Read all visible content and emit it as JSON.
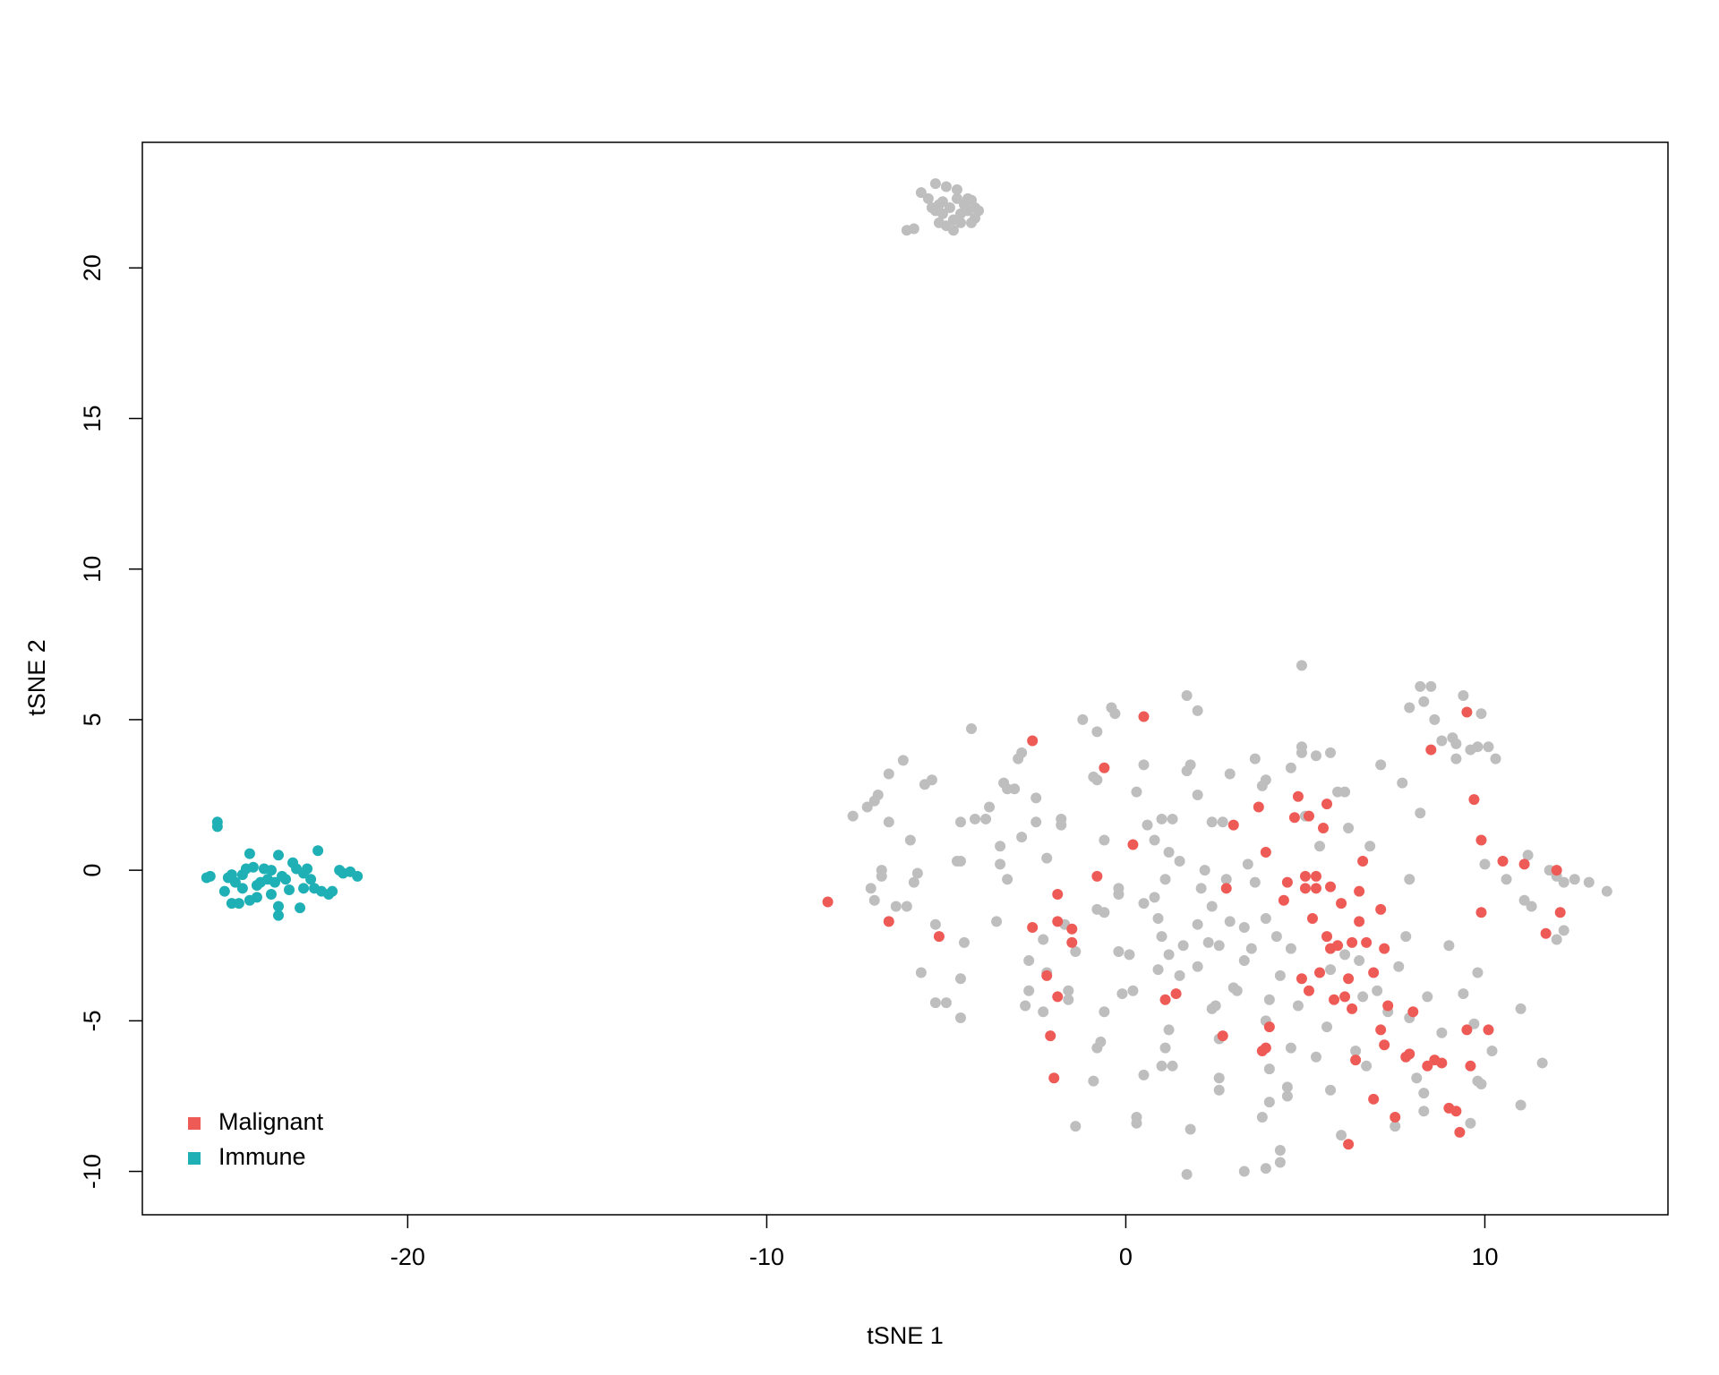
{
  "chart_data": {
    "type": "scatter",
    "xlabel": "tSNE 1",
    "ylabel": "tSNE 2",
    "xlim": [
      -27.39,
      15.1
    ],
    "ylim": [
      -11.44,
      24.17
    ],
    "xticks": [
      -20,
      -10,
      0,
      10
    ],
    "yticks": [
      -10,
      -5,
      0,
      5,
      10,
      15,
      20
    ],
    "legend": "bottomleft",
    "series": [
      {
        "color": "#bebebe",
        "x": [
          -6.1,
          -5.9,
          -5.7,
          -5.5,
          -5.3,
          -5.3,
          -5.2,
          -5.2,
          -5.1,
          -5.0,
          -5.0,
          -4.9,
          -4.8,
          -4.8,
          -4.7,
          -4.7,
          -4.6,
          -4.5,
          -4.4,
          -4.3,
          -4.3,
          -4.2,
          -4.2,
          -4.4,
          -5.4,
          -5.1,
          -4.6,
          -4.1,
          -7.6,
          -7.2,
          -7.0,
          -6.9,
          -6.6,
          -6.2,
          -5.6,
          -5.4,
          -6.6,
          -7.0,
          -7.1,
          -6.8,
          -6.8,
          -6.4,
          -6.1,
          -6.0,
          -5.9,
          -5.7,
          -5.8,
          -5.3,
          -5.3,
          -5.0,
          -4.7,
          -4.6,
          -4.6,
          -4.5,
          -4.6,
          -4.6,
          -4.3,
          -4.2,
          -3.9,
          -3.8,
          -3.6,
          -3.5,
          -3.5,
          -3.3,
          -3.4,
          -3.1,
          -3.0,
          -2.9,
          -3.3,
          -2.8,
          -2.7,
          -2.7,
          -2.9,
          -2.5,
          -2.5,
          -2.3,
          -2.2,
          -2.2,
          -2.3,
          -1.8,
          -1.8,
          -1.7,
          -1.6,
          -1.6,
          -1.4,
          -1.2,
          -0.9,
          -0.8,
          -0.6,
          -0.6,
          -0.8,
          -0.7,
          -0.8,
          -0.9,
          -1.4,
          -0.8,
          -0.4,
          -0.3,
          -0.2,
          -0.2,
          -0.1,
          0.1,
          0.2,
          -0.6,
          0.3,
          0.5,
          0.6,
          0.8,
          1.0,
          1.3,
          1.2,
          1.5,
          1.1,
          0.5,
          0.8,
          1.0,
          1.2,
          0.9,
          1.5,
          1.2,
          1.1,
          1.3,
          1.0,
          0.5,
          0.3,
          0.3,
          1.8,
          1.7,
          1.8,
          1.7,
          2.0,
          2.0,
          2.4,
          2.7,
          2.9,
          2.2,
          2.8,
          2.4,
          2.0,
          2.3,
          2.6,
          2.0,
          2.5,
          2.4,
          2.6,
          2.6,
          2.6,
          1.7,
          3.1,
          3.3,
          3.3,
          3.4,
          3.6,
          3.6,
          3.8,
          3.9,
          3.9,
          4.2,
          4.0,
          4.0,
          3.8,
          3.9,
          3.3,
          4.3,
          4.3,
          4.5,
          4.5,
          4.6,
          4.6,
          4.6,
          4.9,
          4.9,
          5.3,
          5.7,
          4.9,
          5.0,
          5.4,
          5.7,
          5.7,
          5.6,
          5.9,
          6.1,
          6.2,
          6.1,
          6.4,
          6.6,
          6.8,
          6.7,
          7.0,
          7.1,
          7.3,
          7.5,
          7.7,
          7.9,
          7.8,
          7.9,
          8.1,
          8.3,
          8.3,
          8.2,
          8.2,
          8.5,
          7.9,
          8.3,
          8.6,
          8.8,
          9.1,
          9.2,
          9.4,
          9.2,
          9.6,
          9.8,
          9.9,
          10.1,
          10.3,
          10.0,
          9.0,
          9.4,
          9.8,
          9.7,
          9.9,
          9.8,
          9.6,
          10.2,
          11.1,
          11.2,
          11.8,
          12.0,
          12.2,
          12.2,
          12.0,
          12.5,
          12.9,
          13.4,
          11.0,
          11.0,
          11.6,
          11.3,
          10.6,
          8.4,
          6.0,
          2.9,
          3.9,
          4.8,
          3.5,
          4.3,
          5.3,
          6.5,
          7.6,
          8.8,
          2.1,
          0.9,
          -0.2,
          1.6,
          3.0,
          4.0
        ],
        "y": [
          21.25,
          21.3,
          22.5,
          22.3,
          22.8,
          21.9,
          22.1,
          21.5,
          21.8,
          22.7,
          21.4,
          22.0,
          21.6,
          21.25,
          22.6,
          22.3,
          21.8,
          22.1,
          21.9,
          22.25,
          21.5,
          22.0,
          21.65,
          22.3,
          22.0,
          22.2,
          21.5,
          21.9,
          1.8,
          2.1,
          2.3,
          2.5,
          3.2,
          3.65,
          2.85,
          3.0,
          1.6,
          -1.0,
          -0.6,
          0.0,
          -0.2,
          -1.2,
          -1.2,
          1.0,
          -0.4,
          -3.4,
          -0.1,
          -1.8,
          -4.4,
          -4.4,
          0.3,
          0.3,
          1.6,
          -2.4,
          -3.6,
          -4.9,
          4.7,
          1.7,
          1.7,
          2.1,
          -1.7,
          0.2,
          0.8,
          2.7,
          2.9,
          2.7,
          3.7,
          3.9,
          -0.3,
          -4.5,
          -3.0,
          -4.0,
          1.1,
          1.6,
          2.4,
          -2.3,
          0.4,
          -3.4,
          -4.7,
          1.7,
          1.5,
          -1.8,
          -4.0,
          -4.3,
          -2.7,
          5.0,
          3.1,
          3.0,
          1.0,
          -1.4,
          -1.3,
          -5.7,
          -5.9,
          -7.0,
          -8.5,
          4.6,
          5.4,
          5.2,
          -0.8,
          -2.7,
          -4.1,
          -2.8,
          -4.0,
          -4.7,
          2.6,
          3.5,
          1.5,
          1.0,
          1.7,
          1.7,
          0.6,
          0.3,
          -0.3,
          -1.1,
          -0.9,
          -2.2,
          -2.8,
          -3.3,
          -3.5,
          -5.3,
          -5.9,
          -6.5,
          -6.5,
          -6.8,
          -8.2,
          -8.4,
          -8.6,
          5.8,
          3.5,
          3.3,
          5.3,
          2.5,
          1.6,
          1.6,
          3.2,
          0.0,
          -0.3,
          -1.2,
          -1.8,
          -2.4,
          -2.5,
          -3.2,
          -4.5,
          -4.6,
          -5.6,
          -6.9,
          -7.3,
          -10.1,
          -4.0,
          -3.0,
          -1.9,
          0.2,
          -0.4,
          3.7,
          2.8,
          3.0,
          -1.6,
          -2.2,
          -6.6,
          -7.7,
          -8.2,
          -9.9,
          -10.0,
          -9.7,
          -9.3,
          -7.2,
          -7.5,
          -5.9,
          -2.6,
          3.4,
          3.9,
          4.1,
          3.8,
          3.9,
          6.8,
          1.8,
          0.8,
          -3.3,
          -7.3,
          -5.2,
          2.6,
          2.6,
          1.4,
          -2.8,
          -6.0,
          -4.2,
          0.8,
          -6.5,
          -4.0,
          3.5,
          -4.7,
          -8.5,
          2.9,
          -0.3,
          -2.2,
          -4.9,
          -6.9,
          -7.4,
          -8.0,
          1.9,
          6.1,
          6.1,
          5.4,
          5.6,
          5.0,
          4.3,
          4.4,
          4.2,
          5.8,
          3.7,
          4.0,
          4.1,
          5.2,
          4.1,
          3.7,
          0.2,
          -2.5,
          -4.1,
          -3.4,
          -5.1,
          -7.1,
          -7.0,
          -8.4,
          -6.0,
          -1.0,
          0.5,
          0.0,
          -0.2,
          -0.4,
          -2.0,
          -2.3,
          -0.3,
          -0.4,
          -0.7,
          -4.6,
          -7.8,
          -6.4,
          -1.2,
          -0.3,
          -4.2,
          -8.8,
          -1.7,
          -5.0,
          -4.5,
          -2.6,
          -3.5,
          -6.2,
          -3.0,
          -3.2,
          -5.4,
          -0.6,
          -1.6,
          -0.6,
          -2.5,
          -3.9,
          -4.3
        ]
      },
      {
        "name": "Malignant",
        "color": "#ee5b57",
        "x": [
          -8.3,
          -6.6,
          -5.2,
          -2.6,
          -2.6,
          -2.2,
          -2.1,
          -2.0,
          -1.9,
          -1.9,
          -1.9,
          -1.5,
          -1.5,
          -0.8,
          -0.6,
          0.2,
          0.5,
          1.1,
          1.4,
          2.8,
          3.0,
          3.7,
          3.8,
          3.9,
          3.9,
          4.4,
          4.5,
          4.7,
          4.8,
          4.9,
          5.0,
          5.1,
          5.1,
          5.2,
          5.3,
          5.3,
          5.4,
          5.5,
          5.6,
          5.6,
          5.7,
          5.7,
          5.8,
          5.9,
          6.0,
          6.1,
          6.2,
          6.3,
          6.3,
          6.4,
          6.5,
          6.5,
          6.6,
          6.7,
          6.9,
          7.1,
          7.1,
          7.2,
          7.3,
          7.5,
          6.9,
          7.2,
          7.8,
          7.9,
          8.0,
          8.4,
          8.5,
          8.6,
          8.8,
          9.0,
          9.2,
          9.3,
          9.5,
          9.6,
          9.7,
          9.9,
          9.9,
          9.5,
          10.1,
          10.5,
          11.1,
          11.7,
          12.0,
          12.1,
          6.2,
          4.0,
          5.0,
          2.7
        ],
        "y": [
          -1.05,
          -1.7,
          -2.2,
          4.3,
          -1.9,
          -3.5,
          -5.5,
          -6.9,
          -0.8,
          -1.7,
          -4.2,
          -1.95,
          -2.4,
          -0.2,
          3.4,
          0.85,
          5.1,
          -4.3,
          -4.1,
          -0.6,
          1.5,
          2.1,
          -6.0,
          -5.9,
          0.6,
          -1.0,
          -0.4,
          1.75,
          2.45,
          -3.6,
          -0.2,
          1.8,
          -4.0,
          -1.6,
          -0.2,
          -0.6,
          -3.4,
          1.4,
          2.2,
          -2.2,
          -0.55,
          -2.6,
          -4.3,
          -2.5,
          -1.1,
          -4.2,
          -3.6,
          -2.4,
          -4.6,
          -6.3,
          -0.7,
          -1.7,
          0.3,
          -2.4,
          -3.4,
          -1.3,
          -5.3,
          -2.6,
          -4.5,
          -8.2,
          -7.6,
          -5.8,
          -6.2,
          -6.1,
          -4.7,
          -6.5,
          4.0,
          -6.3,
          -6.4,
          -7.9,
          -8.0,
          -8.7,
          -5.3,
          -6.5,
          2.35,
          1.0,
          -1.4,
          5.25,
          -5.3,
          0.3,
          0.2,
          -2.1,
          0.0,
          -1.4,
          -9.1,
          -5.2,
          -0.6,
          -5.5
        ]
      },
      {
        "name": "Immune",
        "color": "#1fb0b5",
        "x": [
          -25.3,
          -25.3,
          -25.6,
          -25.5,
          -25.0,
          -25.1,
          -24.9,
          -24.7,
          -24.8,
          -24.6,
          -24.5,
          -24.4,
          -24.3,
          -24.2,
          -24.4,
          -24.2,
          -24.0,
          -23.9,
          -23.8,
          -23.7,
          -23.6,
          -23.6,
          -23.6,
          -23.4,
          -23.3,
          -23.2,
          -23.1,
          -23.0,
          -22.9,
          -22.8,
          -22.7,
          -22.6,
          -22.5,
          -22.4,
          -22.2,
          -22.1,
          -21.9,
          -21.8,
          -21.6,
          -21.4,
          -23.8,
          -24.1,
          -22.9,
          -23.5,
          -24.6,
          -24.9
        ],
        "y": [
          1.6,
          1.45,
          -0.25,
          -0.2,
          -0.25,
          -0.7,
          -1.1,
          -1.1,
          -0.4,
          -0.15,
          0.05,
          0.55,
          0.1,
          -0.5,
          -1.0,
          -0.9,
          0.05,
          -0.3,
          -0.8,
          -0.4,
          0.5,
          -1.2,
          -1.5,
          -0.3,
          -0.65,
          0.25,
          0.05,
          -1.25,
          -0.6,
          0.05,
          -0.3,
          -0.6,
          0.65,
          -0.7,
          -0.8,
          -0.7,
          0.0,
          -0.1,
          -0.05,
          -0.2,
          0.0,
          -0.4,
          -0.1,
          -0.2,
          -0.6,
          -0.15
        ]
      }
    ]
  }
}
